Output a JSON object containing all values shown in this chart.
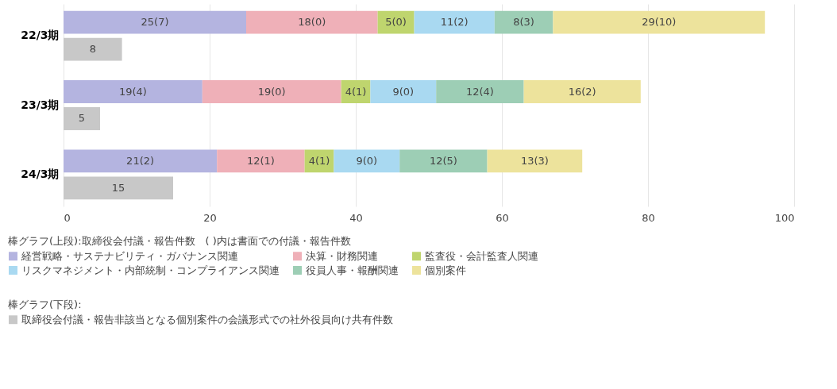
{
  "chart_data": {
    "type": "bar",
    "orientation": "horizontal",
    "categories": [
      "22/3期",
      "23/3期",
      "24/3期"
    ],
    "series": [
      {
        "name": "経営戦略・サステナビリティ・ガバナンス関連",
        "color": "#b4b4e0",
        "base": [
          0,
          0,
          0
        ],
        "values": [
          25,
          19,
          21
        ],
        "value_labels": [
          "25(7)",
          "19(4)",
          "21(2)"
        ]
      },
      {
        "name": "決算・財務関連",
        "color": "#efb0b8",
        "base": [
          25,
          19,
          21
        ],
        "values": [
          18,
          19,
          12
        ],
        "value_labels": [
          "18(0)",
          "19(0)",
          "12(1)"
        ]
      },
      {
        "name": "監査役・会計監査人関連",
        "color": "#bfd56e",
        "base": [
          43,
          38,
          33
        ],
        "values": [
          5,
          4,
          4
        ],
        "value_labels": [
          "5(0)",
          "4(1)",
          "4(1)"
        ]
      },
      {
        "name": "リスクマネジメント・内部統制・コンプライアンス関連",
        "color": "#a9d9f1",
        "base": [
          48,
          42,
          37
        ],
        "values": [
          11,
          9,
          9
        ],
        "value_labels": [
          "11(2)",
          "9(0)",
          "9(0)"
        ]
      },
      {
        "name": "役員人事・報酬関連",
        "color": "#9dceb5",
        "base": [
          59,
          51,
          46
        ],
        "values": [
          8,
          12,
          12
        ],
        "value_labels": [
          "8(3)",
          "12(4)",
          "12(5)"
        ]
      },
      {
        "name": "個別案件",
        "color": "#ede39c",
        "base": [
          67,
          63,
          58
        ],
        "values": [
          29,
          16,
          13
        ],
        "value_labels": [
          "29(10)",
          "16(2)",
          "13(3)"
        ]
      },
      {
        "name": "取締役会付議・報告非該当となる個別案件の会議形式での社外役員向け共有件数",
        "color": "#c8c8c8",
        "values": [
          8,
          5,
          15
        ],
        "value_labels": [
          "8",
          "5",
          "15"
        ]
      }
    ],
    "xlim": [
      0,
      100
    ],
    "xticks": [
      0,
      20,
      40,
      60,
      80,
      100
    ],
    "grid": "x",
    "legend": "bottom",
    "legend_title": "棒グラフ(上段):取締役会付議・報告件数　(  )内は書面での付議・報告件数",
    "annotations": [
      "棒グラフ(下段):"
    ]
  }
}
